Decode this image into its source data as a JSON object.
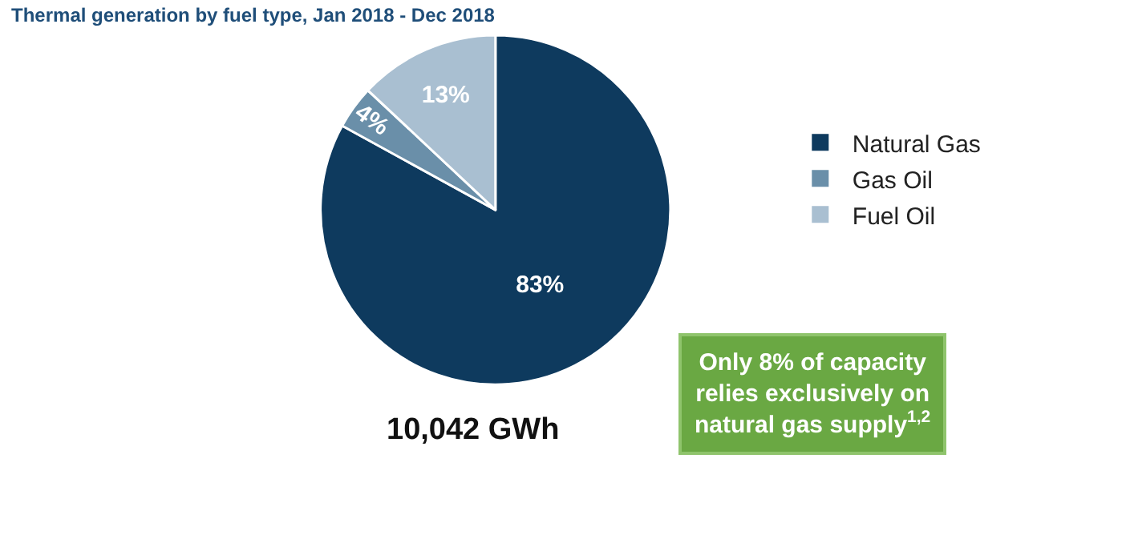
{
  "chart_data": {
    "type": "pie",
    "title": "Thermal generation by fuel type, Jan 2018 - Dec 2018",
    "categories": [
      "Natural Gas",
      "Gas Oil",
      "Fuel Oil"
    ],
    "values": [
      83,
      4,
      13
    ],
    "value_labels": [
      "83%",
      "4%",
      "13%"
    ],
    "colors": [
      "#0e3a5e",
      "#6a8fa9",
      "#a9bfd1"
    ],
    "legend": "right",
    "annotations": [
      "10,042 GWh",
      "Only 8% of capacity\nrelies exclusively on\nnatural gas supply$^{1,2}$"
    ]
  }
}
